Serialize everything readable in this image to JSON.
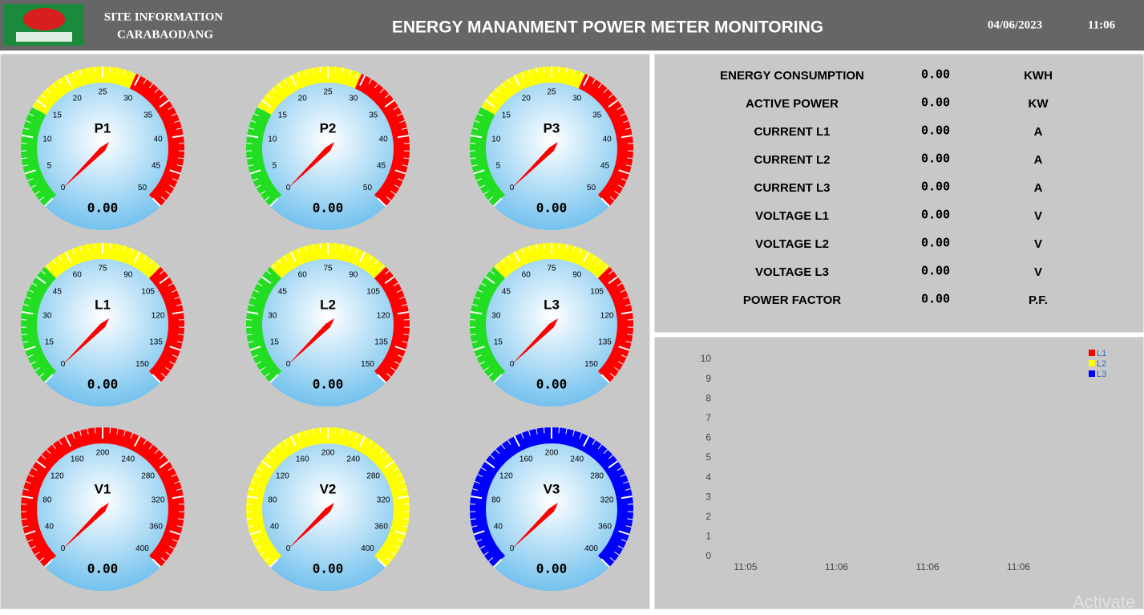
{
  "header": {
    "site_lines": [
      "SITE INFORMATION",
      "CARABAODANG"
    ],
    "title": "ENERGY MANANMENT POWER METER MONITORING",
    "date": "04/06/2023",
    "time": "11:06"
  },
  "gauges": [
    {
      "label": "P1",
      "ticks": [
        0,
        5,
        10,
        15,
        20,
        25,
        30,
        35,
        40,
        45,
        50
      ],
      "zones": [
        {
          "color": "#22dd22",
          "to": 14
        },
        {
          "color": "#ffff00",
          "to": 29.5
        },
        {
          "color": "#ff0000",
          "to": 50
        }
      ],
      "value": "0.00"
    },
    {
      "label": "P2",
      "ticks": [
        0,
        5,
        10,
        15,
        20,
        25,
        30,
        35,
        40,
        45,
        50
      ],
      "zones": [
        {
          "color": "#22dd22",
          "to": 14
        },
        {
          "color": "#ffff00",
          "to": 29.5
        },
        {
          "color": "#ff0000",
          "to": 50
        }
      ],
      "value": "0.00"
    },
    {
      "label": "P3",
      "ticks": [
        0,
        5,
        10,
        15,
        20,
        25,
        30,
        35,
        40,
        45,
        50
      ],
      "zones": [
        {
          "color": "#22dd22",
          "to": 14
        },
        {
          "color": "#ffff00",
          "to": 29.5
        },
        {
          "color": "#ff0000",
          "to": 50
        }
      ],
      "value": "0.00"
    },
    {
      "label": "L1",
      "ticks": [
        0,
        15,
        30,
        45,
        60,
        75,
        90,
        105,
        120,
        135,
        150
      ],
      "zones": [
        {
          "color": "#22dd22",
          "to": 50
        },
        {
          "color": "#ffff00",
          "to": 100
        },
        {
          "color": "#ff0000",
          "to": 150
        }
      ],
      "value": "0.00"
    },
    {
      "label": "L2",
      "ticks": [
        0,
        15,
        30,
        45,
        60,
        75,
        90,
        105,
        120,
        135,
        150
      ],
      "zones": [
        {
          "color": "#22dd22",
          "to": 50
        },
        {
          "color": "#ffff00",
          "to": 100
        },
        {
          "color": "#ff0000",
          "to": 150
        }
      ],
      "value": "0.00"
    },
    {
      "label": "L3",
      "ticks": [
        0,
        15,
        30,
        45,
        60,
        75,
        90,
        105,
        120,
        135,
        150
      ],
      "zones": [
        {
          "color": "#22dd22",
          "to": 50
        },
        {
          "color": "#ffff00",
          "to": 100
        },
        {
          "color": "#ff0000",
          "to": 150
        }
      ],
      "value": "0.00"
    },
    {
      "label": "V1",
      "ticks": [
        0,
        40,
        80,
        120,
        160,
        200,
        240,
        280,
        320,
        360,
        400
      ],
      "zones": [
        {
          "color": "#ff0000",
          "to": 400
        }
      ],
      "value": "0.00"
    },
    {
      "label": "V2",
      "ticks": [
        0,
        40,
        80,
        120,
        160,
        200,
        240,
        280,
        320,
        360,
        400
      ],
      "zones": [
        {
          "color": "#ffff00",
          "to": 400
        }
      ],
      "value": "0.00"
    },
    {
      "label": "V3",
      "ticks": [
        0,
        40,
        80,
        120,
        160,
        200,
        240,
        280,
        320,
        360,
        400
      ],
      "zones": [
        {
          "color": "#0000ff",
          "to": 400
        }
      ],
      "value": "0.00"
    }
  ],
  "readings": [
    {
      "label": "ENERGY CONSUMPTION",
      "value": "0.00",
      "unit": "KWH"
    },
    {
      "label": "ACTIVE POWER",
      "value": "0.00",
      "unit": "KW"
    },
    {
      "label": "CURRENT L1",
      "value": "0.00",
      "unit": "A"
    },
    {
      "label": "CURRENT L2",
      "value": "0.00",
      "unit": "A"
    },
    {
      "label": "CURRENT L3",
      "value": "0.00",
      "unit": "A"
    },
    {
      "label": "VOLTAGE L1",
      "value": "0.00",
      "unit": "V"
    },
    {
      "label": "VOLTAGE L2",
      "value": "0.00",
      "unit": "V"
    },
    {
      "label": "VOLTAGE L3",
      "value": "0.00",
      "unit": "V"
    },
    {
      "label": "POWER FACTOR",
      "value": "0.00",
      "unit": "P.F."
    }
  ],
  "chart_data": {
    "type": "line",
    "categories": [
      "11:05",
      "11:06",
      "11:06",
      "11:06"
    ],
    "series": [
      {
        "name": "L1",
        "color": "#ff0000",
        "values": [
          null,
          null,
          null,
          null
        ]
      },
      {
        "name": "L2",
        "color": "#ffff00",
        "values": [
          null,
          null,
          null,
          null
        ]
      },
      {
        "name": "L3",
        "color": "#0000ff",
        "values": [
          null,
          null,
          null,
          null
        ]
      }
    ],
    "ylim": [
      0,
      10
    ],
    "yticks": [
      0,
      1,
      2,
      3,
      4,
      5,
      6,
      7,
      8,
      9,
      10
    ]
  },
  "watermark": "Activate"
}
